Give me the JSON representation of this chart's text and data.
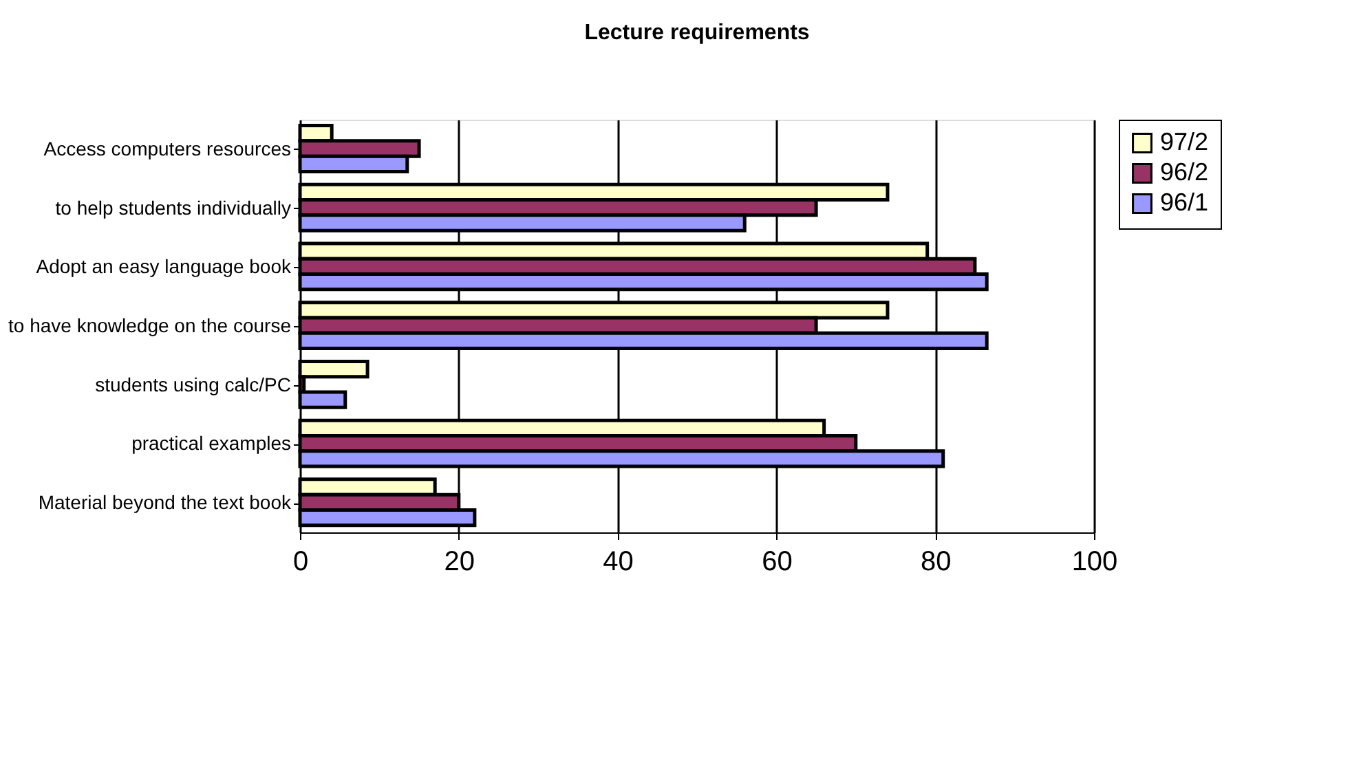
{
  "chart_data": {
    "type": "bar",
    "orientation": "horizontal",
    "title": "Lecture requirements",
    "categories": [
      "Access computers resources",
      "to help students individually",
      "Adopt an  easy language book",
      "to have knowledge on the course",
      "students using calc/PC",
      "practical examples",
      "Material beyond the text book"
    ],
    "series": [
      {
        "name": "97/2",
        "color": "#ffffcc",
        "values": [
          4,
          74,
          79,
          74,
          8.5,
          66,
          17
        ]
      },
      {
        "name": "96/2",
        "color": "#993366",
        "values": [
          15,
          65,
          85,
          65,
          0.5,
          70,
          20
        ]
      },
      {
        "name": "96/1",
        "color": "#9999ff",
        "values": [
          13.5,
          56,
          86.5,
          86.5,
          5.7,
          81,
          22
        ]
      }
    ],
    "xlim": [
      0,
      100
    ],
    "xticks": [
      0,
      20,
      40,
      60,
      80,
      100
    ],
    "grid": "x",
    "legend": "right"
  }
}
